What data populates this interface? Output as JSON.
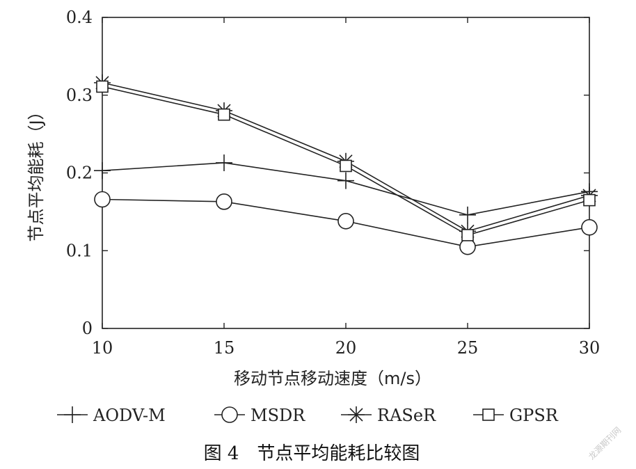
{
  "chart_data": {
    "type": "line",
    "xlabel": "移动节点移动速度（m/s）",
    "ylabel": "节点平均能耗（J）",
    "x": [
      10,
      15,
      20,
      25,
      30
    ],
    "xlim": [
      10,
      30
    ],
    "ylim": [
      0,
      0.4
    ],
    "xticks": [
      "10",
      "15",
      "20",
      "25",
      "30"
    ],
    "yticks": [
      "0",
      "0.1",
      "0.2",
      "0.3",
      "0.4"
    ],
    "grid": false,
    "legend_position": "bottom",
    "series": [
      {
        "name": "AODV-M",
        "marker": "plus",
        "values": [
          0.203,
          0.213,
          0.19,
          0.146,
          0.176
        ]
      },
      {
        "name": "MSDR",
        "marker": "circle",
        "values": [
          0.166,
          0.163,
          0.138,
          0.105,
          0.13
        ]
      },
      {
        "name": "RASeR",
        "marker": "star",
        "values": [
          0.316,
          0.28,
          0.215,
          0.125,
          0.171
        ]
      },
      {
        "name": "GPSR",
        "marker": "square",
        "values": [
          0.311,
          0.275,
          0.209,
          0.12,
          0.165
        ]
      }
    ]
  },
  "caption": "图 4　节点平均能耗比较图",
  "watermark": "龙源期刊网",
  "colors": {
    "line": "#222222",
    "axis": "#222222"
  }
}
